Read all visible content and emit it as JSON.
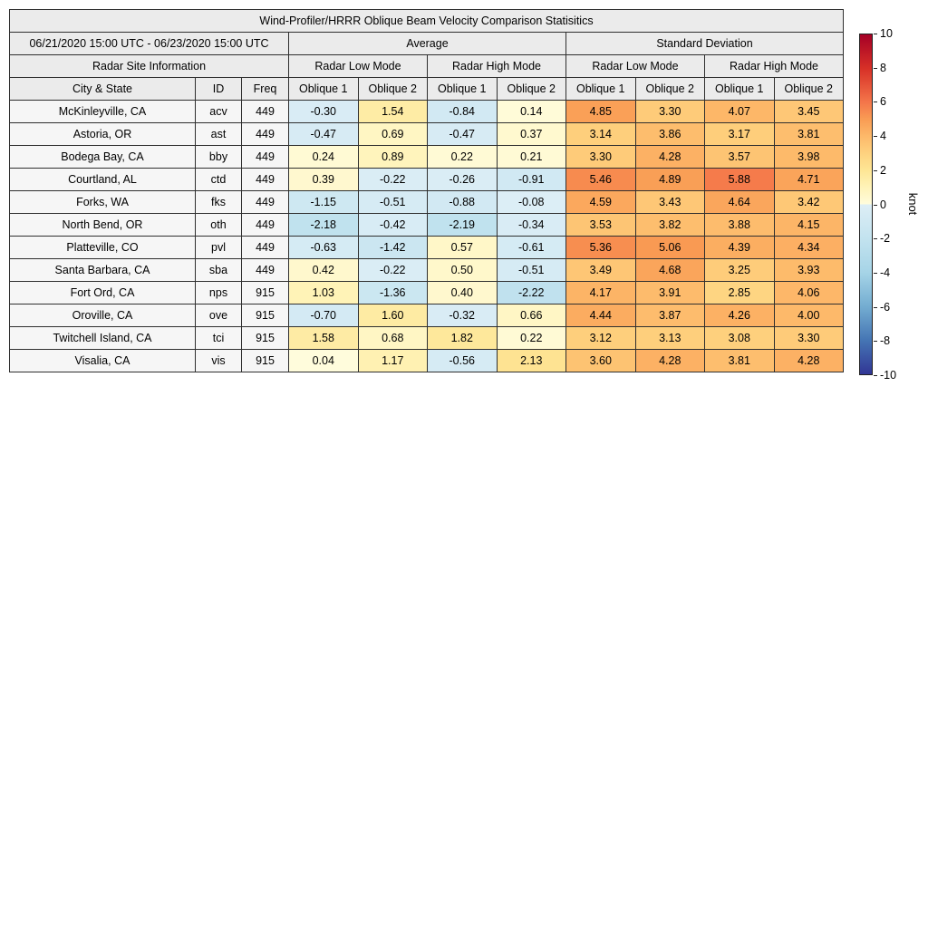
{
  "chart_data": {
    "type": "heatmap",
    "title": "Wind-Profiler/HRRR Oblique Beam Velocity Comparison Statisitics",
    "date_range": "06/21/2020 15:00 UTC - 06/23/2020 15:00 UTC",
    "group_headers": {
      "average": "Average",
      "std_dev": "Standard Deviation"
    },
    "mode_headers": {
      "site_info": "Radar Site Information",
      "low_mode": "Radar Low Mode",
      "high_mode": "Radar High Mode"
    },
    "column_headers": [
      "City & State",
      "ID",
      "Freq",
      "Oblique 1",
      "Oblique 2",
      "Oblique 1",
      "Oblique 2",
      "Oblique 1",
      "Oblique 2",
      "Oblique 1",
      "Oblique 2"
    ],
    "rows": [
      {
        "city_state": "McKinleyville, CA",
        "id": "acv",
        "freq": 449,
        "values": [
          -0.3,
          1.54,
          -0.84,
          0.14,
          4.85,
          3.3,
          4.07,
          3.45
        ]
      },
      {
        "city_state": "Astoria, OR",
        "id": "ast",
        "freq": 449,
        "values": [
          -0.47,
          0.69,
          -0.47,
          0.37,
          3.14,
          3.86,
          3.17,
          3.81
        ]
      },
      {
        "city_state": "Bodega Bay, CA",
        "id": "bby",
        "freq": 449,
        "values": [
          0.24,
          0.89,
          0.22,
          0.21,
          3.3,
          4.28,
          3.57,
          3.98
        ]
      },
      {
        "city_state": "Courtland, AL",
        "id": "ctd",
        "freq": 449,
        "values": [
          0.39,
          -0.22,
          -0.26,
          -0.91,
          5.46,
          4.89,
          5.88,
          4.71
        ]
      },
      {
        "city_state": "Forks, WA",
        "id": "fks",
        "freq": 449,
        "values": [
          -1.15,
          -0.51,
          -0.88,
          -0.08,
          4.59,
          3.43,
          4.64,
          3.42
        ]
      },
      {
        "city_state": "North Bend, OR",
        "id": "oth",
        "freq": 449,
        "values": [
          -2.18,
          -0.42,
          -2.19,
          -0.34,
          3.53,
          3.82,
          3.88,
          4.15
        ]
      },
      {
        "city_state": "Platteville, CO",
        "id": "pvl",
        "freq": 449,
        "values": [
          -0.63,
          -1.42,
          0.57,
          -0.61,
          5.36,
          5.06,
          4.39,
          4.34
        ]
      },
      {
        "city_state": "Santa Barbara, CA",
        "id": "sba",
        "freq": 449,
        "values": [
          0.42,
          -0.22,
          0.5,
          -0.51,
          3.49,
          4.68,
          3.25,
          3.93
        ]
      },
      {
        "city_state": "Fort Ord, CA",
        "id": "nps",
        "freq": 915,
        "values": [
          1.03,
          -1.36,
          0.4,
          -2.22,
          4.17,
          3.91,
          2.85,
          4.06
        ]
      },
      {
        "city_state": "Oroville, CA",
        "id": "ove",
        "freq": 915,
        "values": [
          -0.7,
          1.6,
          -0.32,
          0.66,
          4.44,
          3.87,
          4.26,
          4.0
        ]
      },
      {
        "city_state": "Twitchell Island, CA",
        "id": "tci",
        "freq": 915,
        "values": [
          1.58,
          0.68,
          1.82,
          0.22,
          3.12,
          3.13,
          3.08,
          3.3
        ]
      },
      {
        "city_state": "Visalia, CA",
        "id": "vis",
        "freq": 915,
        "values": [
          0.04,
          1.17,
          -0.56,
          2.13,
          3.6,
          4.28,
          3.81,
          4.28
        ]
      }
    ],
    "colorbar": {
      "label": "knot",
      "vmin": -10,
      "vmax": 10,
      "ticks": [
        10,
        8,
        6,
        4,
        2,
        0,
        -2,
        -4,
        -6,
        -8,
        -10
      ]
    },
    "colormap_anchors": [
      {
        "v": -10,
        "c": "#313695"
      },
      {
        "v": -8,
        "c": "#4575b4"
      },
      {
        "v": -6,
        "c": "#74add1"
      },
      {
        "v": -4,
        "c": "#a6d4e7"
      },
      {
        "v": -2,
        "c": "#c3e3ef"
      },
      {
        "v": -0.01,
        "c": "#ddeef6"
      },
      {
        "v": 0,
        "c": "#fffcdd"
      },
      {
        "v": 1,
        "c": "#fff3b8"
      },
      {
        "v": 2,
        "c": "#fee695"
      },
      {
        "v": 3,
        "c": "#fed27f"
      },
      {
        "v": 4,
        "c": "#fdb96a"
      },
      {
        "v": 5,
        "c": "#f99c54"
      },
      {
        "v": 6,
        "c": "#f4764a"
      },
      {
        "v": 8,
        "c": "#d73027"
      },
      {
        "v": 10,
        "c": "#a50026"
      }
    ]
  }
}
